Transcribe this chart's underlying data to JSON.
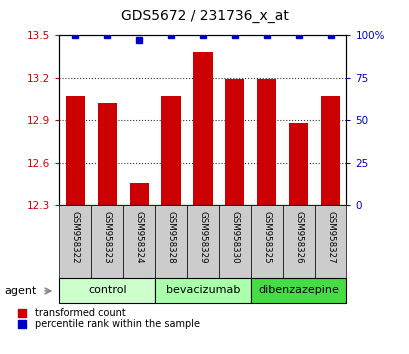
{
  "title": "GDS5672 / 231736_x_at",
  "samples": [
    "GSM958322",
    "GSM958323",
    "GSM958324",
    "GSM958328",
    "GSM958329",
    "GSM958330",
    "GSM958325",
    "GSM958326",
    "GSM958327"
  ],
  "red_values": [
    13.07,
    13.02,
    12.46,
    13.07,
    13.38,
    13.19,
    13.19,
    12.88,
    13.07
  ],
  "blue_values": [
    100,
    100,
    97,
    100,
    100,
    100,
    100,
    100,
    100
  ],
  "ylim_left": [
    12.3,
    13.5
  ],
  "ylim_right": [
    0,
    100
  ],
  "yticks_left": [
    12.3,
    12.6,
    12.9,
    13.2,
    13.5
  ],
  "yticks_right": [
    0,
    25,
    50,
    75,
    100
  ],
  "groups": [
    {
      "label": "control",
      "indices": [
        0,
        1,
        2
      ],
      "color": "#ccffcc"
    },
    {
      "label": "bevacizumab",
      "indices": [
        3,
        4,
        5
      ],
      "color": "#aaffaa"
    },
    {
      "label": "dibenzazepine",
      "indices": [
        6,
        7,
        8
      ],
      "color": "#44dd44"
    }
  ],
  "group_row_label": "agent",
  "bar_color": "#cc0000",
  "blue_color": "#0000cc",
  "bar_width": 0.6,
  "left_axis_color": "#cc0000",
  "right_axis_color": "#0000cc",
  "sample_box_color": "#cccccc",
  "legend_red": "transformed count",
  "legend_blue": "percentile rank within the sample",
  "bg_color": "#ffffff"
}
